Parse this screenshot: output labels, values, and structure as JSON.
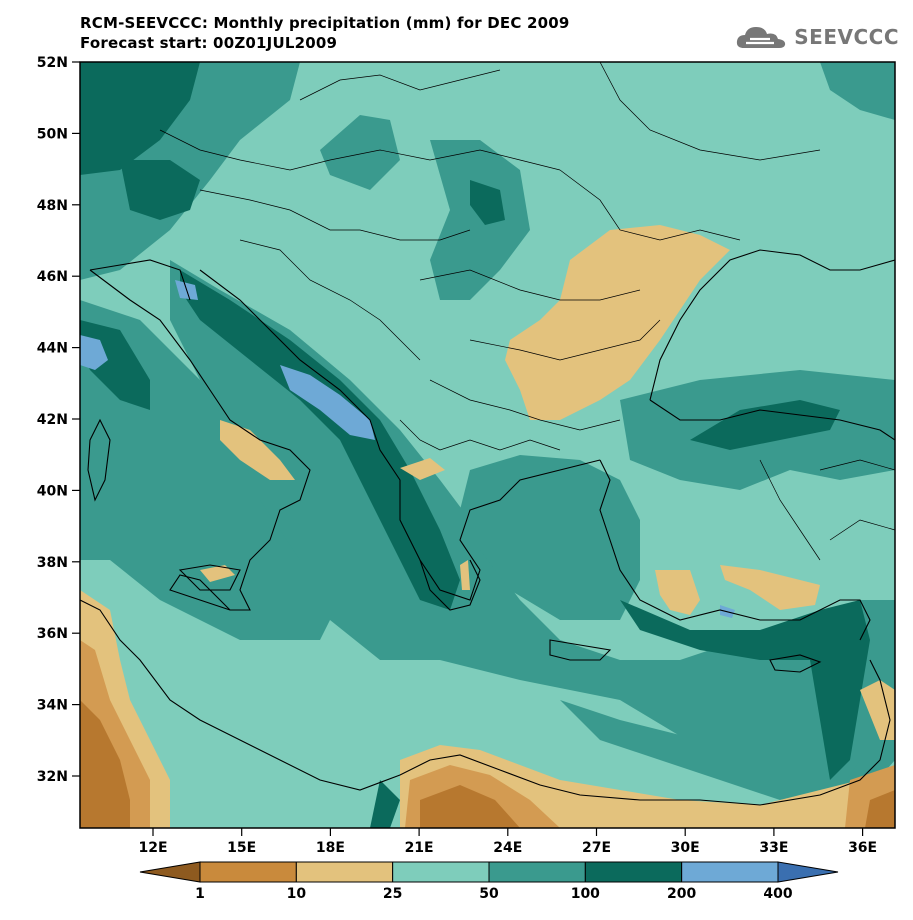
{
  "title": "RCM-SEEVCCC: Monthly precipitation (mm) for DEC 2009",
  "subtitle": "Forecast start: 00Z01JUL2009",
  "logo_text": "SEEVCCC",
  "axes": {
    "lat_labels": [
      "52N",
      "50N",
      "48N",
      "46N",
      "44N",
      "42N",
      "40N",
      "38N",
      "36N",
      "34N",
      "32N"
    ],
    "lon_labels": [
      "12E",
      "15E",
      "18E",
      "21E",
      "24E",
      "27E",
      "30E",
      "33E",
      "36E"
    ]
  },
  "colorbar": {
    "thresholds": [
      "1",
      "10",
      "25",
      "50",
      "100",
      "200",
      "400"
    ],
    "colors": [
      "#8e5a1f",
      "#c98a3c",
      "#e3c27d",
      "#7ecdbb",
      "#3a9a8e",
      "#0b6a5c",
      "#6ea9d6",
      "#3a6fb0"
    ]
  },
  "precip_colors": {
    "dark_brown": "#b7782f",
    "brown": "#d39b52",
    "tan": "#e3c27d",
    "light_teal": "#7ecdbb",
    "teal": "#3a9a8e",
    "dark_teal": "#0b6a5c",
    "light_blue": "#6ea9d6"
  }
}
